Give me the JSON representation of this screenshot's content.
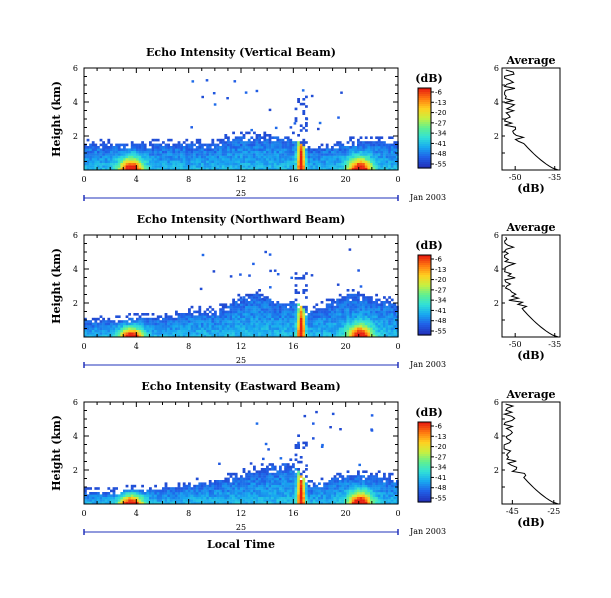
{
  "chart_data": [
    {
      "type": "heatmap",
      "title": "Echo Intensity (Vertical Beam)",
      "ylabel": "Height (km)",
      "yticks": [
        "6",
        "4",
        "2"
      ],
      "ylim": [
        0,
        6
      ],
      "xticks": [
        "0",
        "4",
        "8",
        "12",
        "16",
        "20",
        "0"
      ],
      "xlim": [
        0,
        24
      ],
      "day_label": "25",
      "date_label": "Jan 2003",
      "colorbar": {
        "unit": "(dB)",
        "ticks": [
          "-6",
          "-13",
          "-20",
          "-27",
          "-34",
          "-41",
          "-48",
          "-55"
        ]
      },
      "tops": [
        [
          0,
          1.6
        ],
        [
          1,
          1.6
        ],
        [
          2,
          1.6
        ],
        [
          3,
          1.6
        ],
        [
          4,
          1.6
        ],
        [
          5,
          1.6
        ],
        [
          6,
          1.6
        ],
        [
          7,
          1.6
        ],
        [
          8,
          1.6
        ],
        [
          9,
          1.6
        ],
        [
          10,
          1.6
        ],
        [
          11,
          2.0
        ],
        [
          12,
          2.0
        ],
        [
          13,
          2.0
        ],
        [
          14,
          2.1
        ],
        [
          15,
          2.1
        ],
        [
          16,
          2.0
        ],
        [
          17,
          1.3
        ],
        [
          18,
          1.4
        ],
        [
          19,
          1.6
        ],
        [
          20,
          1.7
        ],
        [
          21,
          1.7
        ],
        [
          22,
          1.8
        ],
        [
          23,
          1.8
        ],
        [
          24,
          1.8
        ]
      ],
      "cores": [
        [
          3.5,
          0.8
        ],
        [
          16.5,
          3.8
        ],
        [
          21,
          0.8
        ]
      ],
      "average": {
        "title": "Average",
        "xlabel": "(dB)",
        "xticks": [
          "-50",
          "-35"
        ],
        "xlim": [
          -55,
          -33
        ],
        "yticks": [
          "6",
          "4",
          "2"
        ]
      }
    },
    {
      "type": "heatmap",
      "title": "Echo Intensity (Northward Beam)",
      "ylabel": "Height (km)",
      "yticks": [
        "6",
        "4",
        "2"
      ],
      "ylim": [
        0,
        6
      ],
      "xticks": [
        "0",
        "4",
        "8",
        "12",
        "16",
        "20",
        "0"
      ],
      "xlim": [
        0,
        24
      ],
      "day_label": "25",
      "date_label": "Jan 2003",
      "colorbar": {
        "unit": "(dB)",
        "ticks": [
          "-6",
          "-13",
          "-20",
          "-27",
          "-34",
          "-41",
          "-48",
          "-55"
        ]
      },
      "tops": [
        [
          0,
          1.0
        ],
        [
          2,
          1.0
        ],
        [
          4,
          1.2
        ],
        [
          6,
          1.2
        ],
        [
          8,
          1.6
        ],
        [
          10,
          1.6
        ],
        [
          12,
          2.4
        ],
        [
          13,
          2.6
        ],
        [
          14,
          2.5
        ],
        [
          15,
          2.0
        ],
        [
          16,
          2.2
        ],
        [
          17,
          1.5
        ],
        [
          18,
          1.8
        ],
        [
          19,
          2.2
        ],
        [
          20,
          2.6
        ],
        [
          21,
          2.6
        ],
        [
          22,
          2.4
        ],
        [
          23,
          2.2
        ],
        [
          24,
          2.0
        ]
      ],
      "cores": [
        [
          3.5,
          0.6
        ],
        [
          16.5,
          3.3
        ],
        [
          21,
          0.8
        ]
      ],
      "average": {
        "title": "Average",
        "xlabel": "(dB)",
        "xticks": [
          "-50",
          "-35"
        ],
        "xlim": [
          -55,
          -33
        ],
        "yticks": [
          "6",
          "4",
          "2"
        ]
      }
    },
    {
      "type": "heatmap",
      "title": "Echo Intensity (Eastward Beam)",
      "ylabel": "Height (km)",
      "yticks": [
        "6",
        "4",
        "2"
      ],
      "ylim": [
        0,
        6
      ],
      "xticks": [
        "0",
        "4",
        "8",
        "12",
        "16",
        "20",
        "0"
      ],
      "xlim": [
        0,
        24
      ],
      "day_label": "25",
      "date_label": "Jan 2003",
      "xlabel": "Local Time",
      "colorbar": {
        "unit": "(dB)",
        "ticks": [
          "-6",
          "-13",
          "-20",
          "-27",
          "-34",
          "-41",
          "-48",
          "-55"
        ]
      },
      "tops": [
        [
          0,
          0.8
        ],
        [
          2,
          0.8
        ],
        [
          4,
          0.9
        ],
        [
          6,
          1.0
        ],
        [
          8,
          1.2
        ],
        [
          10,
          1.4
        ],
        [
          12,
          1.8
        ],
        [
          13,
          2.0
        ],
        [
          14,
          2.2
        ],
        [
          15,
          2.4
        ],
        [
          16,
          2.4
        ],
        [
          17,
          1.2
        ],
        [
          18,
          1.3
        ],
        [
          19,
          1.6
        ],
        [
          20,
          1.8
        ],
        [
          21,
          1.8
        ],
        [
          22,
          1.8
        ],
        [
          23,
          1.6
        ],
        [
          24,
          1.5
        ]
      ],
      "cores": [
        [
          3.5,
          0.6
        ],
        [
          16.5,
          3.6
        ],
        [
          21,
          0.8
        ]
      ],
      "average": {
        "title": "Average",
        "xlabel": "(dB)",
        "xticks": [
          "-45",
          "-25"
        ],
        "xlim": [
          -50,
          -22
        ],
        "yticks": [
          "6",
          "4",
          "2"
        ]
      }
    }
  ]
}
